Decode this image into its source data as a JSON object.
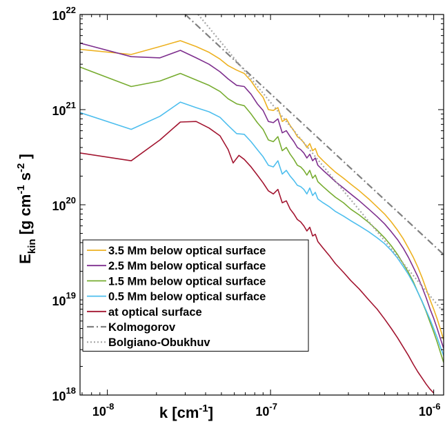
{
  "chart_data": {
    "type": "line",
    "title": "",
    "xlabel": "k [cm",
    "xlabel_sup": "-1",
    "xlabel_end": "]",
    "ylabel_main": "E",
    "ylabel_sub": "kin",
    "ylabel_unit_a": " [g cm",
    "ylabel_sup_a": "-1",
    "ylabel_unit_b": " s",
    "ylabel_sup_b": "-2",
    "ylabel_end": " ]",
    "x_scale": "log",
    "y_scale": "log",
    "xlim": [
      6.8e-09,
      1.15e-06
    ],
    "ylim": [
      1e+18,
      1e+22
    ],
    "grid": false,
    "legend_position": "bottom-left",
    "x_ticks": [
      {
        "value": 1e-08,
        "base": "10",
        "exp": "-8"
      },
      {
        "value": 1e-07,
        "base": "10",
        "exp": "-7"
      },
      {
        "value": 1e-06,
        "base": "10",
        "exp": "-6"
      }
    ],
    "y_ticks": [
      {
        "value": 1e+18,
        "base": "10",
        "exp": "18"
      },
      {
        "value": 1e+19,
        "base": "10",
        "exp": "19"
      },
      {
        "value": 1e+20,
        "base": "10",
        "exp": "20"
      },
      {
        "value": 1e+21,
        "base": "10",
        "exp": "21"
      },
      {
        "value": 1e+22,
        "base": "10",
        "exp": "22"
      }
    ],
    "series": [
      {
        "name": "3.5 Mm below optical surface",
        "color": "#EDB120",
        "style": "solid",
        "points": [
          [
            6.8e-09,
            4.3e+21
          ],
          [
            1.4e-08,
            3.8e+21
          ],
          [
            2.1e-08,
            4.6e+21
          ],
          [
            2.8e-08,
            5.3e+21
          ],
          [
            3.5e-08,
            4.6e+21
          ],
          [
            4.2e-08,
            4e+21
          ],
          [
            4.9e-08,
            3.4e+21
          ],
          [
            5.5e-08,
            2.9e+21
          ],
          [
            6.2e-08,
            2.6e+21
          ],
          [
            6.9e-08,
            2.4e+21
          ],
          [
            7.6e-08,
            2e+21
          ],
          [
            8.3e-08,
            1.6e+21
          ],
          [
            9e-08,
            1.35e+21
          ],
          [
            9.7e-08,
            1e+21
          ],
          [
            1.04e-07,
            9.8e+20
          ],
          [
            1.11e-07,
            1.05e+21
          ],
          [
            1.18e-07,
            7.5e+20
          ],
          [
            1.25e-07,
            8e+20
          ],
          [
            1.32e-07,
            6.8e+20
          ],
          [
            1.39e-07,
            6e+20
          ],
          [
            1.46e-07,
            5.2e+20
          ],
          [
            1.53e-07,
            4.9e+20
          ],
          [
            1.6e-07,
            4.5e+20
          ],
          [
            1.67e-07,
            4e+20
          ],
          [
            1.74e-07,
            4.4e+20
          ],
          [
            1.81e-07,
            3.7e+20
          ],
          [
            1.88e-07,
            3.9e+20
          ],
          [
            1.95e-07,
            3.3e+20
          ],
          [
            2.1e-07,
            2.9e+20
          ],
          [
            2.3e-07,
            2.5e+20
          ],
          [
            2.5e-07,
            2.2e+20
          ],
          [
            2.8e-07,
            1.9e+20
          ],
          [
            3.1e-07,
            1.65e+20
          ],
          [
            3.5e-07,
            1.4e+20
          ],
          [
            4e-07,
            1.15e+20
          ],
          [
            4.5e-07,
            9.5e+19
          ],
          [
            5e-07,
            8e+19
          ],
          [
            5.5e-07,
            6.6e+19
          ],
          [
            6e-07,
            5.4e+19
          ],
          [
            6.5e-07,
            4.4e+19
          ],
          [
            7e-07,
            3.5e+19
          ],
          [
            7.5e-07,
            2.8e+19
          ],
          [
            8e-07,
            2.2e+19
          ],
          [
            8.5e-07,
            1.7e+19
          ],
          [
            9e-07,
            1.3e+19
          ],
          [
            9.5e-07,
            1e+19
          ],
          [
            1e-06,
            8e+18
          ],
          [
            1.05e-06,
            6.3e+18
          ],
          [
            1.1e-06,
            4.9e+18
          ],
          [
            1.15e-06,
            3.8e+18
          ]
        ]
      },
      {
        "name": "2.5 Mm below optical surface",
        "color": "#7E2F8E",
        "style": "solid",
        "points": [
          [
            6.8e-09,
            5e+21
          ],
          [
            1.4e-08,
            3.6e+21
          ],
          [
            2.1e-08,
            3.5e+21
          ],
          [
            2.8e-08,
            4.2e+21
          ],
          [
            3.5e-08,
            3.5e+21
          ],
          [
            4.2e-08,
            3e+21
          ],
          [
            4.9e-08,
            2.5e+21
          ],
          [
            5.5e-08,
            2.1e+21
          ],
          [
            6.2e-08,
            1.8e+21
          ],
          [
            6.9e-08,
            1.75e+21
          ],
          [
            7.6e-08,
            1.45e+21
          ],
          [
            8.3e-08,
            1.15e+21
          ],
          [
            9e-08,
            9.8e+20
          ],
          [
            9.7e-08,
            7.5e+20
          ],
          [
            1.04e-07,
            7.3e+20
          ],
          [
            1.11e-07,
            8e+20
          ],
          [
            1.18e-07,
            5.7e+20
          ],
          [
            1.25e-07,
            6e+20
          ],
          [
            1.32e-07,
            5.2e+20
          ],
          [
            1.39e-07,
            4.6e+20
          ],
          [
            1.46e-07,
            4e+20
          ],
          [
            1.53e-07,
            3.8e+20
          ],
          [
            1.6e-07,
            3.5e+20
          ],
          [
            1.67e-07,
            3.1e+20
          ],
          [
            1.74e-07,
            3.4e+20
          ],
          [
            1.81e-07,
            2.9e+20
          ],
          [
            1.88e-07,
            3.1e+20
          ],
          [
            1.95e-07,
            2.6e+20
          ],
          [
            2.1e-07,
            2.3e+20
          ],
          [
            2.3e-07,
            2e+20
          ],
          [
            2.5e-07,
            1.75e+20
          ],
          [
            2.8e-07,
            1.5e+20
          ],
          [
            3.1e-07,
            1.3e+20
          ],
          [
            3.5e-07,
            1.1e+20
          ],
          [
            4e-07,
            9e+19
          ],
          [
            4.5e-07,
            7.5e+19
          ],
          [
            5e-07,
            6.3e+19
          ],
          [
            5.5e-07,
            5.2e+19
          ],
          [
            6e-07,
            4.3e+19
          ],
          [
            6.5e-07,
            3.5e+19
          ],
          [
            7e-07,
            2.8e+19
          ],
          [
            7.5e-07,
            2.2e+19
          ],
          [
            8e-07,
            1.75e+19
          ],
          [
            8.5e-07,
            1.35e+19
          ],
          [
            9e-07,
            1.05e+19
          ],
          [
            9.5e-07,
            8e+18
          ],
          [
            1e-06,
            6.4e+18
          ],
          [
            1.05e-06,
            5e+18
          ],
          [
            1.1e-06,
            3.9e+18
          ],
          [
            1.15e-06,
            3.1e+18
          ]
        ]
      },
      {
        "name": "1.5 Mm below optical surface",
        "color": "#77AC30",
        "style": "solid",
        "points": [
          [
            6.8e-09,
            2.8e+21
          ],
          [
            1.4e-08,
            1.75e+21
          ],
          [
            2.1e-08,
            2e+21
          ],
          [
            2.8e-08,
            2.4e+21
          ],
          [
            3.5e-08,
            2.05e+21
          ],
          [
            4.2e-08,
            1.8e+21
          ],
          [
            4.9e-08,
            1.55e+21
          ],
          [
            5.5e-08,
            1.3e+21
          ],
          [
            6.2e-08,
            1.15e+21
          ],
          [
            6.9e-08,
            1.1e+21
          ],
          [
            7.6e-08,
            9e+20
          ],
          [
            8.3e-08,
            7.3e+20
          ],
          [
            9e-08,
            6.2e+20
          ],
          [
            9.7e-08,
            4.8e+20
          ],
          [
            1.04e-07,
            4.6e+20
          ],
          [
            1.11e-07,
            5.2e+20
          ],
          [
            1.18e-07,
            3.7e+20
          ],
          [
            1.25e-07,
            4e+20
          ],
          [
            1.32e-07,
            3.4e+20
          ],
          [
            1.39e-07,
            3e+20
          ],
          [
            1.46e-07,
            2.6e+20
          ],
          [
            1.53e-07,
            2.5e+20
          ],
          [
            1.6e-07,
            2.3e+20
          ],
          [
            1.67e-07,
            2.05e+20
          ],
          [
            1.74e-07,
            2.3e+20
          ],
          [
            1.81e-07,
            1.9e+20
          ],
          [
            1.88e-07,
            2.05e+20
          ],
          [
            1.95e-07,
            1.75e+20
          ],
          [
            2.1e-07,
            1.55e+20
          ],
          [
            2.3e-07,
            1.35e+20
          ],
          [
            2.5e-07,
            1.2e+20
          ],
          [
            2.8e-07,
            1.05e+20
          ],
          [
            3.1e-07,
            9e+19
          ],
          [
            3.5e-07,
            7.8e+19
          ],
          [
            4e-07,
            6.5e+19
          ],
          [
            4.5e-07,
            5.4e+19
          ],
          [
            5e-07,
            4.5e+19
          ],
          [
            5.5e-07,
            3.7e+19
          ],
          [
            6e-07,
            3e+19
          ],
          [
            6.5e-07,
            2.4e+19
          ],
          [
            7e-07,
            1.95e+19
          ],
          [
            7.5e-07,
            1.55e+19
          ],
          [
            8e-07,
            1.2e+19
          ],
          [
            8.5e-07,
            9.5e+18
          ],
          [
            9e-07,
            7.5e+18
          ],
          [
            9.5e-07,
            5.8e+18
          ],
          [
            1e-06,
            4.6e+18
          ],
          [
            1.05e-06,
            3.6e+18
          ],
          [
            1.1e-06,
            2.8e+18
          ],
          [
            1.15e-06,
            2.2e+18
          ]
        ]
      },
      {
        "name": "0.5 Mm below optical surface",
        "color": "#4DBEEE",
        "style": "solid",
        "points": [
          [
            6.8e-09,
            9.3e+20
          ],
          [
            1.4e-08,
            6.2e+20
          ],
          [
            2.1e-08,
            8.5e+20
          ],
          [
            2.8e-08,
            1.2e+21
          ],
          [
            3.5e-08,
            1.05e+21
          ],
          [
            4.2e-08,
            9.5e+20
          ],
          [
            4.9e-08,
            8.3e+20
          ],
          [
            5.5e-08,
            6.8e+20
          ],
          [
            6.2e-08,
            5.6e+20
          ],
          [
            6.9e-08,
            5.5e+20
          ],
          [
            7.6e-08,
            4.6e+20
          ],
          [
            8.3e-08,
            3.8e+20
          ],
          [
            9e-08,
            3.2e+20
          ],
          [
            9.7e-08,
            2.6e+20
          ],
          [
            1.04e-07,
            2.5e+20
          ],
          [
            1.11e-07,
            2.9e+20
          ],
          [
            1.18e-07,
            2.1e+20
          ],
          [
            1.25e-07,
            2.3e+20
          ],
          [
            1.32e-07,
            2e+20
          ],
          [
            1.39e-07,
            1.8e+20
          ],
          [
            1.46e-07,
            1.6e+20
          ],
          [
            1.53e-07,
            1.55e+20
          ],
          [
            1.6e-07,
            1.45e+20
          ],
          [
            1.67e-07,
            1.3e+20
          ],
          [
            1.74e-07,
            1.5e+20
          ],
          [
            1.81e-07,
            1.25e+20
          ],
          [
            1.88e-07,
            1.35e+20
          ],
          [
            1.95e-07,
            1.15e+20
          ],
          [
            2.1e-07,
            1.05e+20
          ],
          [
            2.3e-07,
            9.5e+19
          ],
          [
            2.5e-07,
            8.5e+19
          ],
          [
            2.8e-07,
            7.6e+19
          ],
          [
            3.1e-07,
            6.8e+19
          ],
          [
            3.5e-07,
            6e+19
          ],
          [
            4e-07,
            5.2e+19
          ],
          [
            4.5e-07,
            4.5e+19
          ],
          [
            5e-07,
            3.9e+19
          ],
          [
            5.5e-07,
            3.3e+19
          ],
          [
            6e-07,
            2.75e+19
          ],
          [
            6.5e-07,
            2.25e+19
          ],
          [
            7e-07,
            1.85e+19
          ],
          [
            7.5e-07,
            1.5e+19
          ],
          [
            8e-07,
            1.2e+19
          ],
          [
            8.5e-07,
            9.6e+18
          ],
          [
            9e-07,
            7.7e+18
          ],
          [
            9.5e-07,
            6.2e+18
          ],
          [
            1e-06,
            5e+18
          ],
          [
            1.05e-06,
            4e+18
          ],
          [
            1.1e-06,
            3.2e+18
          ],
          [
            1.15e-06,
            2.6e+18
          ]
        ]
      },
      {
        "name": "at optical surface",
        "color": "#A2142F",
        "style": "solid",
        "points": [
          [
            6.8e-09,
            3.5e+20
          ],
          [
            1.4e-08,
            2.9e+20
          ],
          [
            2.1e-08,
            4.8e+20
          ],
          [
            2.8e-08,
            7.4e+20
          ],
          [
            3.5e-08,
            7.5e+20
          ],
          [
            4.2e-08,
            6.4e+20
          ],
          [
            4.9e-08,
            5.3e+20
          ],
          [
            5.5e-08,
            3.8e+20
          ],
          [
            5.9e-08,
            2.75e+20
          ],
          [
            6.4e-08,
            3.3e+20
          ],
          [
            6.9e-08,
            3e+20
          ],
          [
            7.6e-08,
            2.5e+20
          ],
          [
            8.3e-08,
            2.05e+20
          ],
          [
            9e-08,
            1.7e+20
          ],
          [
            9.7e-08,
            1.4e+20
          ],
          [
            1.04e-07,
            1.3e+20
          ],
          [
            1.11e-07,
            1.45e+20
          ],
          [
            1.18e-07,
            1.05e+20
          ],
          [
            1.25e-07,
            1.1e+20
          ],
          [
            1.32e-07,
            9e+19
          ],
          [
            1.39e-07,
            8e+19
          ],
          [
            1.46e-07,
            7e+19
          ],
          [
            1.53e-07,
            6.6e+19
          ],
          [
            1.6e-07,
            6e+19
          ],
          [
            1.67e-07,
            5.3e+19
          ],
          [
            1.74e-07,
            5.8e+19
          ],
          [
            1.81e-07,
            4.7e+19
          ],
          [
            1.88e-07,
            4.9e+19
          ],
          [
            1.95e-07,
            4.1e+19
          ],
          [
            2.1e-07,
            3.5e+19
          ],
          [
            2.3e-07,
            2.9e+19
          ],
          [
            2.5e-07,
            2.4e+19
          ],
          [
            2.8e-07,
            1.95e+19
          ],
          [
            3.1e-07,
            1.6e+19
          ],
          [
            3.5e-07,
            1.3e+19
          ],
          [
            4e-07,
            1e+19
          ],
          [
            4.5e-07,
            8e+18
          ],
          [
            5e-07,
            6.3e+18
          ],
          [
            5.5e-07,
            5e+18
          ],
          [
            6e-07,
            4e+18
          ],
          [
            6.5e-07,
            3.2e+18
          ],
          [
            7e-07,
            2.6e+18
          ],
          [
            7.5e-07,
            2.1e+18
          ],
          [
            8e-07,
            1.75e+18
          ],
          [
            8.5e-07,
            1.5e+18
          ],
          [
            9e-07,
            1.3e+18
          ],
          [
            9.5e-07,
            1.15e+18
          ],
          [
            1e-06,
            1.05e+18
          ]
        ]
      },
      {
        "name": "Kolmogorov",
        "color": "#7F7F7F",
        "style": "dashdot",
        "points": [
          [
            3e-08,
            1e+22
          ],
          [
            1.15e-06,
            3e+19
          ]
        ]
      },
      {
        "name": "Bolgiano-Obukhuv",
        "color": "#A6A6A6",
        "style": "dotted",
        "points": [
          [
            3.6e-08,
            1e+22
          ],
          [
            1.15e-06,
            7.4e+18
          ]
        ]
      }
    ]
  }
}
